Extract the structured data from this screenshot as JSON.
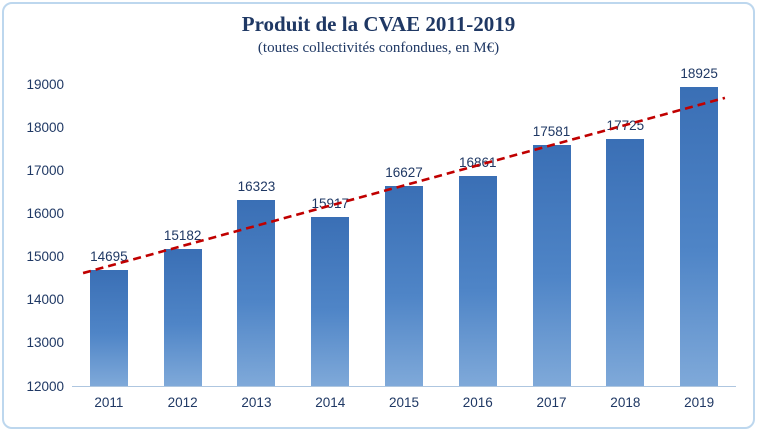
{
  "title": "Produit de la CVAE 2011-2019",
  "subtitle": "(toutes collectivités confondues, en M€)",
  "chart_data": {
    "type": "bar",
    "title": "Produit de la CVAE 2011-2019",
    "subtitle": "(toutes collectivités confondues, en M€)",
    "categories": [
      "2011",
      "2012",
      "2013",
      "2014",
      "2015",
      "2016",
      "2017",
      "2018",
      "2019"
    ],
    "values": [
      14695,
      15182,
      16323,
      15917,
      16627,
      16861,
      17581,
      17725,
      18925
    ],
    "xlabel": "",
    "ylabel": "",
    "ylim": [
      12000,
      19000
    ],
    "ytick_step": 1000,
    "grid": false,
    "legend": false,
    "bar_color_top": "#3a6fb5",
    "bar_color_mid": "#4f85c7",
    "bar_color_bottom": "#7fa9d9",
    "trendline": {
      "type": "linear",
      "style": "dashed",
      "color": "#c00000"
    }
  },
  "colors": {
    "text": "#1f3864",
    "chart_border": "#bdd7ee",
    "axis_line": "#aec6e0"
  }
}
